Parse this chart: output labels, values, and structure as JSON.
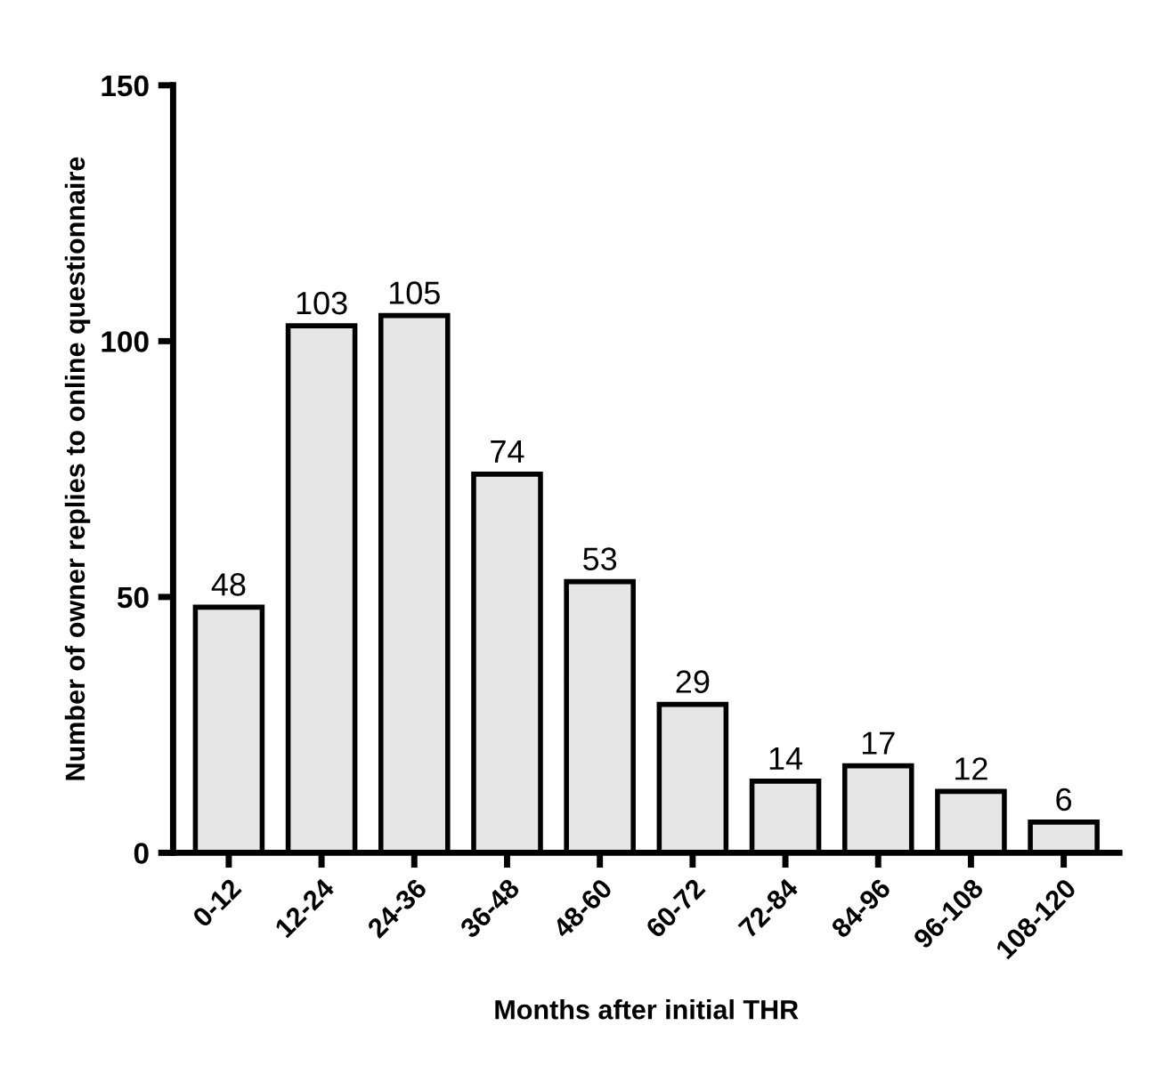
{
  "chart_data": {
    "type": "bar",
    "xlabel": "Months after initial THR",
    "ylabel": "Number of owner replies to online questionnaire",
    "categories": [
      "0-12",
      "12-24",
      "24-36",
      "36-48",
      "48-60",
      "60-72",
      "72-84",
      "84-96",
      "96-108",
      "108-120"
    ],
    "values": [
      48,
      103,
      105,
      74,
      53,
      29,
      14,
      17,
      12,
      6
    ],
    "color": "#e6e6e6",
    "ylim": [
      0,
      150
    ],
    "yticks": [
      0,
      50,
      100,
      150
    ],
    "data_labels": true,
    "grid": false,
    "legend": false
  }
}
